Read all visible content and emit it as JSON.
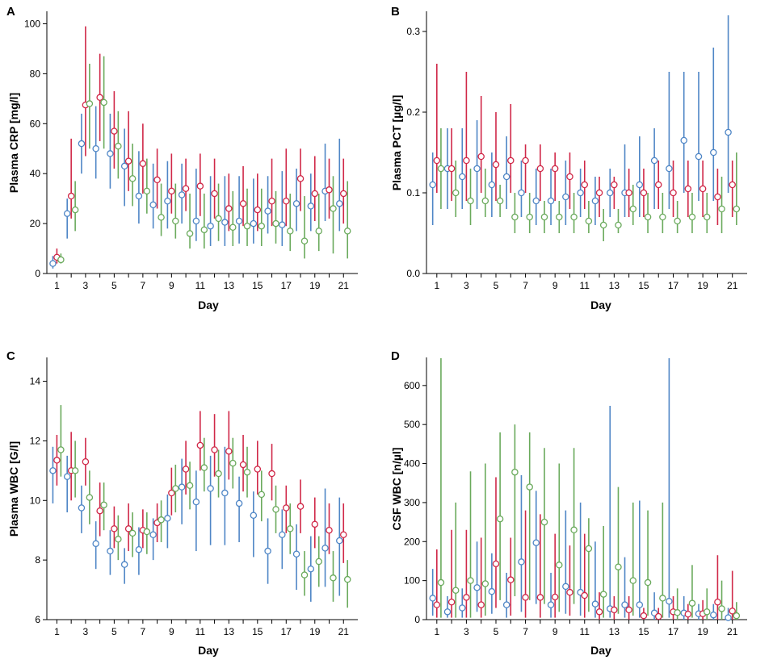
{
  "colors": {
    "blue": "#4f86c6",
    "red": "#d02848",
    "green": "#6aaa5c"
  },
  "chart_data": [
    {
      "type": "errorbar",
      "letter": "A",
      "ylabel": "Plasma CRP [mg/l]",
      "xlabel": "Day",
      "xlim": [
        0.3,
        22
      ],
      "ylim": [
        0,
        105
      ],
      "yticks": [
        0,
        20,
        40,
        60,
        80,
        100
      ],
      "xticks": [
        1,
        3,
        5,
        7,
        9,
        11,
        13,
        15,
        17,
        19,
        21
      ],
      "days": [
        1,
        2,
        3,
        4,
        5,
        6,
        7,
        8,
        9,
        10,
        11,
        12,
        13,
        14,
        15,
        16,
        17,
        18,
        19,
        20,
        21
      ],
      "series": [
        {
          "name": "blue",
          "color": "#4f86c6",
          "mean": [
            4,
            24,
            52,
            50,
            48,
            43,
            31,
            27.5,
            29,
            31.5,
            21,
            19,
            20.5,
            21,
            20,
            25,
            19.5,
            28,
            27,
            33,
            28
          ],
          "lower": [
            2,
            14,
            40,
            38,
            34,
            27,
            20,
            18,
            18,
            20,
            13,
            11,
            11,
            12,
            12,
            16,
            11,
            17,
            17,
            21,
            17
          ],
          "upper": [
            7,
            30,
            64,
            67,
            64,
            58,
            49,
            44,
            45,
            44,
            42,
            39,
            39,
            39,
            38,
            39,
            41,
            42,
            40,
            52,
            54
          ]
        },
        {
          "name": "red",
          "color": "#d02848",
          "mean": [
            6.5,
            31,
            67.5,
            70.5,
            57,
            45,
            44,
            37.5,
            33,
            34,
            35,
            32,
            26,
            28,
            25.5,
            29,
            29,
            38,
            32,
            33.5,
            32
          ],
          "lower": [
            4,
            22,
            47,
            53,
            42,
            33,
            32,
            26,
            24,
            25,
            23,
            22,
            17,
            19,
            17,
            19,
            19,
            25,
            21,
            22,
            20
          ],
          "upper": [
            10,
            54,
            99,
            88,
            73,
            65,
            60,
            50,
            48,
            46,
            48,
            46,
            40,
            43,
            40,
            46,
            50,
            50,
            47,
            46,
            46
          ]
        },
        {
          "name": "green",
          "color": "#6aaa5c",
          "mean": [
            5.5,
            25.5,
            68,
            68.5,
            51,
            38,
            33,
            22.5,
            21,
            16,
            17.5,
            22,
            18.5,
            19,
            19,
            20,
            17,
            13,
            17,
            26,
            17
          ],
          "lower": [
            4,
            17,
            50,
            50,
            38,
            27,
            24,
            15,
            14,
            10,
            10,
            13,
            11,
            11,
            11,
            12,
            9,
            6,
            9,
            8,
            6
          ],
          "upper": [
            8,
            37,
            84,
            87,
            65,
            52,
            46,
            36,
            36,
            32,
            32,
            36,
            33,
            34,
            34,
            33,
            32,
            31,
            32,
            39,
            37
          ]
        }
      ]
    },
    {
      "type": "errorbar",
      "letter": "B",
      "ylabel": "Plasma PCT [µg/l]",
      "xlabel": "Day",
      "xlim": [
        0.3,
        22
      ],
      "ylim": [
        0,
        0.325
      ],
      "yticks": [
        0.0,
        0.1,
        0.2,
        0.3
      ],
      "yticklabels": [
        "0.0",
        "0.1",
        "0.2",
        "0.3"
      ],
      "xticks": [
        1,
        3,
        5,
        7,
        9,
        11,
        13,
        15,
        17,
        19,
        21
      ],
      "days": [
        1,
        2,
        3,
        4,
        5,
        6,
        7,
        8,
        9,
        10,
        11,
        12,
        13,
        14,
        15,
        16,
        17,
        18,
        19,
        20,
        21
      ],
      "series": [
        {
          "name": "blue",
          "color": "#4f86c6",
          "mean": [
            0.11,
            0.13,
            0.12,
            0.13,
            0.11,
            0.12,
            0.1,
            0.09,
            0.09,
            0.095,
            0.1,
            0.09,
            0.1,
            0.1,
            0.11,
            0.14,
            0.13,
            0.165,
            0.145,
            0.15,
            0.175
          ],
          "lower": [
            0.06,
            0.08,
            0.08,
            0.08,
            0.07,
            0.08,
            0.07,
            0.06,
            0.06,
            0.06,
            0.07,
            0.06,
            0.07,
            0.07,
            0.07,
            0.08,
            0.08,
            0.1,
            0.09,
            0.09,
            0.1
          ],
          "upper": [
            0.15,
            0.18,
            0.18,
            0.19,
            0.15,
            0.17,
            0.14,
            0.13,
            0.13,
            0.14,
            0.13,
            0.12,
            0.13,
            0.16,
            0.17,
            0.18,
            0.25,
            0.25,
            0.25,
            0.28,
            0.32
          ]
        },
        {
          "name": "red",
          "color": "#d02848",
          "mean": [
            0.14,
            0.13,
            0.14,
            0.145,
            0.135,
            0.14,
            0.14,
            0.13,
            0.13,
            0.12,
            0.11,
            0.1,
            0.11,
            0.1,
            0.1,
            0.11,
            0.1,
            0.105,
            0.105,
            0.095,
            0.11
          ],
          "lower": [
            0.1,
            0.09,
            0.09,
            0.1,
            0.09,
            0.1,
            0.1,
            0.09,
            0.09,
            0.08,
            0.08,
            0.07,
            0.08,
            0.07,
            0.07,
            0.08,
            0.07,
            0.07,
            0.07,
            0.06,
            0.07
          ],
          "upper": [
            0.26,
            0.18,
            0.25,
            0.22,
            0.2,
            0.21,
            0.16,
            0.16,
            0.15,
            0.15,
            0.14,
            0.12,
            0.12,
            0.13,
            0.13,
            0.14,
            0.14,
            0.14,
            0.14,
            0.13,
            0.14
          ]
        },
        {
          "name": "green",
          "color": "#6aaa5c",
          "mean": [
            0.13,
            0.1,
            0.09,
            0.09,
            0.09,
            0.07,
            0.07,
            0.07,
            0.07,
            0.07,
            0.065,
            0.06,
            0.06,
            0.08,
            0.07,
            0.07,
            0.065,
            0.07,
            0.07,
            0.08,
            0.08
          ],
          "lower": [
            0.08,
            0.07,
            0.06,
            0.07,
            0.07,
            0.05,
            0.05,
            0.05,
            0.05,
            0.05,
            0.05,
            0.04,
            0.05,
            0.06,
            0.05,
            0.05,
            0.05,
            0.05,
            0.05,
            0.05,
            0.06
          ],
          "upper": [
            0.18,
            0.14,
            0.13,
            0.13,
            0.11,
            0.1,
            0.1,
            0.09,
            0.09,
            0.1,
            0.09,
            0.08,
            0.08,
            0.11,
            0.1,
            0.1,
            0.09,
            0.1,
            0.1,
            0.12,
            0.15
          ]
        }
      ]
    },
    {
      "type": "errorbar",
      "letter": "C",
      "ylabel": "Plasma WBC [G/l]",
      "xlabel": "Day",
      "xlim": [
        0.3,
        22
      ],
      "ylim": [
        6,
        14.8
      ],
      "yticks": [
        6,
        8,
        10,
        12,
        14
      ],
      "xticks": [
        1,
        3,
        5,
        7,
        9,
        11,
        13,
        15,
        17,
        19,
        21
      ],
      "days": [
        1,
        2,
        3,
        4,
        5,
        6,
        7,
        8,
        9,
        10,
        11,
        12,
        13,
        14,
        15,
        16,
        17,
        18,
        19,
        20,
        21
      ],
      "series": [
        {
          "name": "blue",
          "color": "#4f86c6",
          "mean": [
            11.0,
            10.8,
            9.75,
            8.55,
            8.3,
            7.85,
            8.35,
            8.85,
            9.4,
            10.45,
            9.95,
            10.4,
            10.25,
            9.9,
            9.5,
            8.3,
            8.85,
            8.2,
            7.7,
            8.4,
            8.65
          ],
          "lower": [
            9.9,
            9.6,
            8.9,
            7.7,
            7.5,
            7.2,
            7.5,
            8.0,
            8.4,
            9.2,
            8.3,
            8.5,
            8.5,
            8.6,
            8.1,
            7.2,
            7.7,
            7.0,
            6.6,
            7.1,
            6.8
          ],
          "upper": [
            11.8,
            11.5,
            10.5,
            9.3,
            9.0,
            8.4,
            9.1,
            9.4,
            10.2,
            11.4,
            11.0,
            11.5,
            11.8,
            10.8,
            10.3,
            9.4,
            9.7,
            9.2,
            8.8,
            10.4,
            10.1
          ]
        },
        {
          "name": "red",
          "color": "#d02848",
          "mean": [
            11.35,
            11.0,
            11.3,
            9.65,
            9.05,
            9.05,
            9.0,
            9.25,
            10.25,
            11.05,
            11.85,
            11.7,
            11.65,
            11.2,
            11.05,
            10.9,
            9.75,
            9.8,
            9.2,
            9.0,
            8.85
          ],
          "lower": [
            10.5,
            10.0,
            10.5,
            8.8,
            8.4,
            8.3,
            8.4,
            8.6,
            9.5,
            10.2,
            11.0,
            10.8,
            10.7,
            10.3,
            10.2,
            10.0,
            8.9,
            8.9,
            8.4,
            8.2,
            7.9
          ],
          "upper": [
            12.2,
            12.3,
            12.1,
            10.6,
            9.8,
            9.9,
            9.7,
            9.9,
            11.1,
            12.0,
            13.0,
            12.9,
            13.0,
            12.2,
            12.0,
            11.9,
            10.5,
            10.7,
            10.1,
            9.9,
            9.9
          ]
        },
        {
          "name": "green",
          "color": "#6aaa5c",
          "mean": [
            11.7,
            11.0,
            10.1,
            9.85,
            8.7,
            8.9,
            8.95,
            9.35,
            10.4,
            10.5,
            11.1,
            10.9,
            11.25,
            10.95,
            10.2,
            9.7,
            9.05,
            7.5,
            7.95,
            7.4,
            7.35
          ],
          "lower": [
            10.8,
            10.1,
            9.2,
            9.0,
            8.0,
            8.1,
            8.2,
            8.6,
            9.6,
            9.7,
            10.3,
            10.1,
            10.4,
            10.1,
            9.3,
            8.9,
            8.2,
            6.8,
            7.1,
            6.6,
            6.4
          ],
          "upper": [
            13.2,
            12.0,
            11.0,
            10.6,
            9.5,
            9.6,
            9.6,
            10.0,
            11.2,
            11.3,
            12.1,
            11.7,
            12.1,
            11.8,
            11.0,
            10.5,
            9.9,
            8.3,
            8.8,
            8.3,
            8.0
          ]
        }
      ]
    },
    {
      "type": "errorbar",
      "letter": "D",
      "ylabel": "CSF WBC [n/µl]",
      "xlabel": "Day",
      "xlim": [
        0.3,
        22
      ],
      "ylim": [
        0,
        672
      ],
      "yticks": [
        0,
        100,
        200,
        300,
        400,
        500,
        600
      ],
      "xticks": [
        1,
        3,
        5,
        7,
        9,
        11,
        13,
        15,
        17,
        19,
        21
      ],
      "days": [
        1,
        2,
        3,
        4,
        5,
        6,
        7,
        8,
        9,
        10,
        11,
        12,
        13,
        14,
        15,
        16,
        17,
        18,
        19,
        20,
        21
      ],
      "series": [
        {
          "name": "blue",
          "color": "#4f86c6",
          "mean": [
            55,
            20,
            30,
            82,
            72,
            38,
            148,
            197,
            38,
            85,
            70,
            40,
            28,
            38,
            38,
            17,
            47,
            17,
            15,
            12,
            5
          ],
          "lower": [
            10,
            5,
            5,
            20,
            15,
            5,
            20,
            40,
            5,
            15,
            10,
            5,
            5,
            5,
            5,
            0,
            5,
            0,
            0,
            0,
            0
          ],
          "upper": [
            130,
            60,
            80,
            200,
            170,
            120,
            370,
            330,
            120,
            280,
            300,
            200,
            548,
            160,
            305,
            70,
            670,
            60,
            40,
            40,
            30
          ]
        },
        {
          "name": "red",
          "color": "#d02848",
          "mean": [
            38,
            45,
            57,
            38,
            143,
            102,
            57,
            57,
            58,
            70,
            62,
            20,
            25,
            25,
            10,
            8,
            20,
            14,
            15,
            45,
            22
          ],
          "lower": [
            5,
            5,
            5,
            5,
            30,
            10,
            5,
            5,
            5,
            10,
            5,
            0,
            0,
            0,
            0,
            0,
            0,
            0,
            0,
            0,
            0
          ],
          "upper": [
            180,
            230,
            230,
            210,
            365,
            210,
            280,
            270,
            220,
            190,
            220,
            70,
            60,
            60,
            30,
            30,
            60,
            40,
            50,
            165,
            125
          ]
        },
        {
          "name": "green",
          "color": "#6aaa5c",
          "mean": [
            95,
            75,
            100,
            92,
            258,
            378,
            340,
            250,
            140,
            230,
            182,
            65,
            135,
            100,
            95,
            55,
            18,
            42,
            20,
            28,
            10
          ],
          "lower": [
            5,
            5,
            5,
            10,
            50,
            60,
            50,
            40,
            20,
            40,
            20,
            5,
            15,
            10,
            10,
            5,
            0,
            5,
            0,
            0,
            0
          ],
          "upper": [
            670,
            300,
            380,
            400,
            480,
            500,
            480,
            440,
            400,
            440,
            260,
            240,
            340,
            300,
            280,
            300,
            80,
            140,
            80,
            100,
            45
          ]
        }
      ]
    }
  ]
}
